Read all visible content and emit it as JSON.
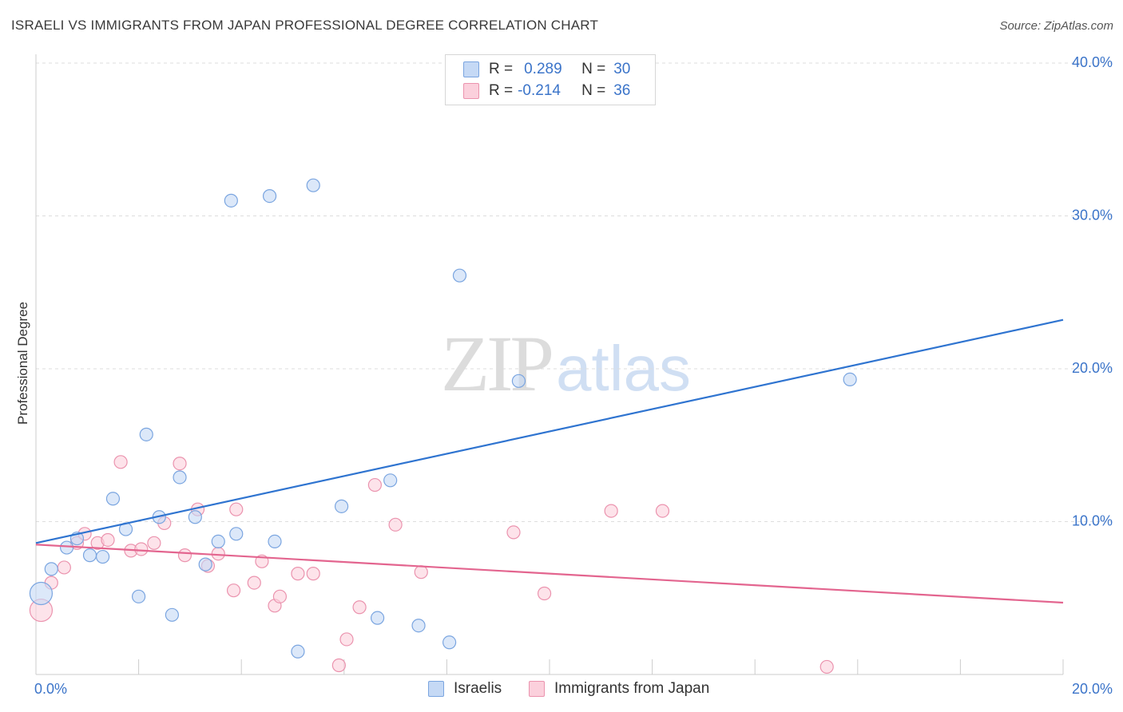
{
  "title": "ISRAELI VS IMMIGRANTS FROM JAPAN PROFESSIONAL DEGREE CORRELATION CHART",
  "source": "Source: ZipAtlas.com",
  "watermark": {
    "zip": "ZIP",
    "atlas": "atlas"
  },
  "legend": {
    "rows": [
      {
        "r_label": "R =",
        "r_value": "0.289",
        "n_label": "N =",
        "n_value": "30"
      },
      {
        "r_label": "R =",
        "r_value": "-0.214",
        "n_label": "N =",
        "n_value": "36"
      }
    ]
  },
  "bottom_legend": {
    "series1": "Israelis",
    "series2": "Immigrants from Japan"
  },
  "colors": {
    "israelis_fill": "#c5d9f5",
    "israelis_stroke": "#7aa5e0",
    "israelis_line": "#2f74d0",
    "japan_fill": "#fbd0dc",
    "japan_stroke": "#eb93ae",
    "japan_line": "#e3658f",
    "tick_text": "#3b74c9",
    "grid": "#dddddd"
  },
  "chart_data": {
    "type": "scatter",
    "title": "ISRAELI VS IMMIGRANTS FROM JAPAN PROFESSIONAL DEGREE CORRELATION CHART",
    "xlabel": "",
    "ylabel": "Professional Degree",
    "xlim": [
      0,
      20
    ],
    "ylim": [
      0,
      40
    ],
    "x_tick_labels": [
      "0.0%",
      "20.0%"
    ],
    "y_ticks": [
      10,
      20,
      30,
      40
    ],
    "y_tick_labels": [
      "10.0%",
      "20.0%",
      "30.0%",
      "40.0%"
    ],
    "series": [
      {
        "name": "Israelis",
        "R": 0.289,
        "N": 30,
        "trend": {
          "x": [
            0,
            20
          ],
          "y": [
            8.6,
            23.2
          ]
        },
        "points": [
          {
            "x": 0.1,
            "y": 5.3,
            "big": true
          },
          {
            "x": 0.3,
            "y": 6.9
          },
          {
            "x": 0.6,
            "y": 8.3
          },
          {
            "x": 0.8,
            "y": 8.9
          },
          {
            "x": 1.05,
            "y": 7.8
          },
          {
            "x": 1.3,
            "y": 7.7
          },
          {
            "x": 1.5,
            "y": 11.5
          },
          {
            "x": 1.75,
            "y": 9.5
          },
          {
            "x": 2.0,
            "y": 5.1
          },
          {
            "x": 2.15,
            "y": 15.7
          },
          {
            "x": 2.4,
            "y": 10.3
          },
          {
            "x": 2.65,
            "y": 3.9
          },
          {
            "x": 2.8,
            "y": 12.9
          },
          {
            "x": 3.1,
            "y": 10.3
          },
          {
            "x": 3.3,
            "y": 7.2
          },
          {
            "x": 3.55,
            "y": 8.7
          },
          {
            "x": 3.8,
            "y": 31.0
          },
          {
            "x": 3.9,
            "y": 9.2
          },
          {
            "x": 4.55,
            "y": 31.3
          },
          {
            "x": 4.65,
            "y": 8.7
          },
          {
            "x": 5.1,
            "y": 1.5
          },
          {
            "x": 5.4,
            "y": 32.0
          },
          {
            "x": 5.95,
            "y": 11.0
          },
          {
            "x": 6.65,
            "y": 3.7
          },
          {
            "x": 6.9,
            "y": 12.7
          },
          {
            "x": 7.45,
            "y": 3.2
          },
          {
            "x": 8.05,
            "y": 2.1
          },
          {
            "x": 8.25,
            "y": 26.1
          },
          {
            "x": 9.4,
            "y": 19.2
          },
          {
            "x": 15.85,
            "y": 19.3
          }
        ]
      },
      {
        "name": "Immigrants from Japan",
        "R": -0.214,
        "N": 36,
        "trend": {
          "x": [
            0,
            20
          ],
          "y": [
            8.5,
            4.7
          ]
        },
        "points": [
          {
            "x": 0.1,
            "y": 4.2,
            "big": true
          },
          {
            "x": 0.3,
            "y": 6.0
          },
          {
            "x": 0.55,
            "y": 7.0
          },
          {
            "x": 0.8,
            "y": 8.6
          },
          {
            "x": 0.95,
            "y": 9.2
          },
          {
            "x": 1.2,
            "y": 8.6
          },
          {
            "x": 1.4,
            "y": 8.8
          },
          {
            "x": 1.65,
            "y": 13.9
          },
          {
            "x": 1.85,
            "y": 8.1
          },
          {
            "x": 2.05,
            "y": 8.2
          },
          {
            "x": 2.3,
            "y": 8.6
          },
          {
            "x": 2.5,
            "y": 9.9
          },
          {
            "x": 2.8,
            "y": 13.8
          },
          {
            "x": 2.9,
            "y": 7.8
          },
          {
            "x": 3.15,
            "y": 10.8
          },
          {
            "x": 3.35,
            "y": 7.1
          },
          {
            "x": 3.55,
            "y": 7.9
          },
          {
            "x": 3.85,
            "y": 5.5
          },
          {
            "x": 3.9,
            "y": 10.8
          },
          {
            "x": 4.25,
            "y": 6.0
          },
          {
            "x": 4.4,
            "y": 7.4
          },
          {
            "x": 4.65,
            "y": 4.5
          },
          {
            "x": 4.75,
            "y": 5.1
          },
          {
            "x": 5.1,
            "y": 6.6
          },
          {
            "x": 5.4,
            "y": 6.6
          },
          {
            "x": 5.9,
            "y": 0.6
          },
          {
            "x": 6.05,
            "y": 2.3
          },
          {
            "x": 6.3,
            "y": 4.4
          },
          {
            "x": 6.6,
            "y": 12.4
          },
          {
            "x": 7.0,
            "y": 9.8
          },
          {
            "x": 7.5,
            "y": 6.7
          },
          {
            "x": 9.3,
            "y": 9.3
          },
          {
            "x": 9.9,
            "y": 5.3
          },
          {
            "x": 11.2,
            "y": 10.7
          },
          {
            "x": 12.2,
            "y": 10.7
          },
          {
            "x": 15.4,
            "y": 0.5
          }
        ]
      }
    ]
  }
}
